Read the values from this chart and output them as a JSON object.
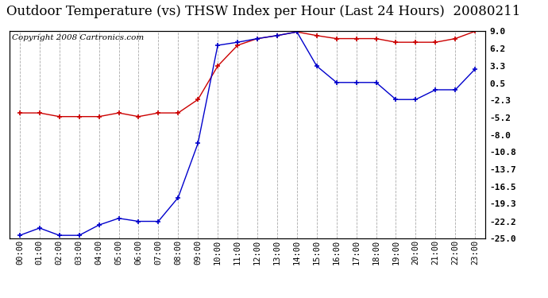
{
  "title": "Outdoor Temperature (vs) THSW Index per Hour (Last 24 Hours)  20080211",
  "copyright": "Copyright 2008 Cartronics.com",
  "x_labels": [
    "00:00",
    "01:00",
    "02:00",
    "03:00",
    "04:00",
    "05:00",
    "06:00",
    "07:00",
    "08:00",
    "09:00",
    "10:00",
    "11:00",
    "12:00",
    "13:00",
    "14:00",
    "15:00",
    "16:00",
    "17:00",
    "18:00",
    "19:00",
    "20:00",
    "21:00",
    "22:00",
    "23:00"
  ],
  "red_data": [
    -4.4,
    -4.4,
    -5.0,
    -5.0,
    -5.0,
    -4.4,
    -5.0,
    -4.4,
    -4.4,
    -2.2,
    3.3,
    6.7,
    7.8,
    8.3,
    8.9,
    8.3,
    7.8,
    7.8,
    7.8,
    7.2,
    7.2,
    7.2,
    7.8,
    9.0
  ],
  "blue_data": [
    -24.5,
    -23.3,
    -24.5,
    -24.5,
    -22.8,
    -21.7,
    -22.2,
    -22.2,
    -18.3,
    -9.4,
    6.7,
    7.2,
    7.8,
    8.3,
    8.9,
    3.3,
    0.6,
    0.6,
    0.6,
    -2.2,
    -2.2,
    -0.6,
    -0.6,
    2.8
  ],
  "ylim": [
    -25.0,
    9.0
  ],
  "y_ticks_right": [
    9.0,
    6.2,
    3.3,
    0.5,
    -2.3,
    -5.2,
    -8.0,
    -10.8,
    -13.7,
    -16.5,
    -19.3,
    -22.2,
    -25.0
  ],
  "red_color": "#cc0000",
  "blue_color": "#0000cc",
  "bg_color": "#ffffff",
  "grid_color": "#aaaaaa",
  "title_fontsize": 12,
  "copyright_fontsize": 7.5,
  "tick_fontsize": 8,
  "xlabel_fontsize": 7.5
}
